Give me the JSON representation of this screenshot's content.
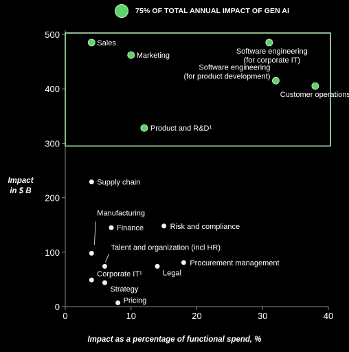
{
  "legend": {
    "label": "75% OF TOTAL ANNUAL IMPACT OF GEN AI",
    "color": "#5fd36b"
  },
  "chart_data": {
    "type": "scatter",
    "xlabel": "Impact as a percentage of functional spend, %",
    "ylabel_lines": [
      "Impact",
      "in $ B"
    ],
    "xlim": [
      0,
      40
    ],
    "ylim": [
      0,
      500
    ],
    "x_ticks": [
      "0",
      "10",
      "20",
      "30",
      "40"
    ],
    "y_ticks": [
      "0",
      "100",
      "200",
      "300",
      "400",
      "500"
    ],
    "grid": false,
    "highlight_region": {
      "x": [
        0,
        40
      ],
      "y": [
        295,
        500
      ],
      "border_color": "#b9f5bf"
    },
    "colors": {
      "highlight": "#5fd36b",
      "other": "#f0f0f0"
    },
    "points": [
      {
        "label": "Sales",
        "x": 4,
        "y": 485,
        "highlight": true
      },
      {
        "label": "Marketing",
        "x": 10,
        "y": 462,
        "highlight": true
      },
      {
        "label": "Software engineering\n(for corporate IT)",
        "x": 31,
        "y": 485,
        "highlight": true
      },
      {
        "label": "Software engineering\n(for product development)",
        "x": 32,
        "y": 415,
        "highlight": true
      },
      {
        "label": "Customer operations",
        "x": 38,
        "y": 405,
        "highlight": true
      },
      {
        "label": "Product and R&D¹",
        "x": 12,
        "y": 328,
        "highlight": true
      },
      {
        "label": "Supply chain",
        "x": 4,
        "y": 229,
        "highlight": false
      },
      {
        "label": "Manufacturing",
        "x": 4,
        "y": 98,
        "highlight": false
      },
      {
        "label": "Finance",
        "x": 7,
        "y": 145,
        "highlight": false
      },
      {
        "label": "Risk and compliance",
        "x": 15,
        "y": 148,
        "highlight": false
      },
      {
        "label": "Talent and organization (incl HR)",
        "x": 6,
        "y": 74,
        "highlight": false
      },
      {
        "label": "Legal",
        "x": 14,
        "y": 74,
        "highlight": false
      },
      {
        "label": "Procurement management",
        "x": 18,
        "y": 81,
        "highlight": false
      },
      {
        "label": "Corporate IT¹",
        "x": 4,
        "y": 49,
        "highlight": false
      },
      {
        "label": "Strategy",
        "x": 6,
        "y": 44,
        "highlight": false
      },
      {
        "label": "Pricing",
        "x": 8,
        "y": 7,
        "highlight": false
      }
    ]
  }
}
